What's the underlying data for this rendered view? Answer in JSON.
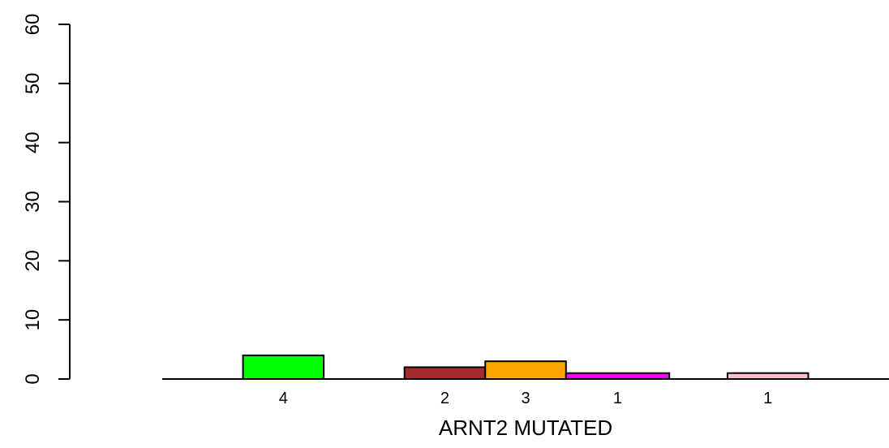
{
  "chart_data": {
    "type": "bar",
    "title": "",
    "xlabel": "ARNT2 MUTATED",
    "ylabel": "",
    "ylim": [
      0,
      60
    ],
    "yticks": [
      0,
      10,
      20,
      30,
      40,
      50,
      60
    ],
    "grid": false,
    "legend": "none",
    "bars": [
      {
        "value": 4,
        "label": "4",
        "color": "#00ff00",
        "x_start": 1.0,
        "x_end": 2.0
      },
      {
        "value": 2,
        "label": "2",
        "color": "#a52a2a",
        "x_start": 3.0,
        "x_end": 4.0
      },
      {
        "value": 3,
        "label": "3",
        "color": "#ffa500",
        "x_start": 4.0,
        "x_end": 5.0
      },
      {
        "value": 1,
        "label": "1",
        "color": "#ff00ff",
        "x_start": 5.0,
        "x_end": 6.28
      },
      {
        "value": 1,
        "label": "1",
        "color": "#ffc0cb",
        "x_start": 7.0,
        "x_end": 8.0
      }
    ],
    "x_range": [
      0,
      9
    ]
  }
}
